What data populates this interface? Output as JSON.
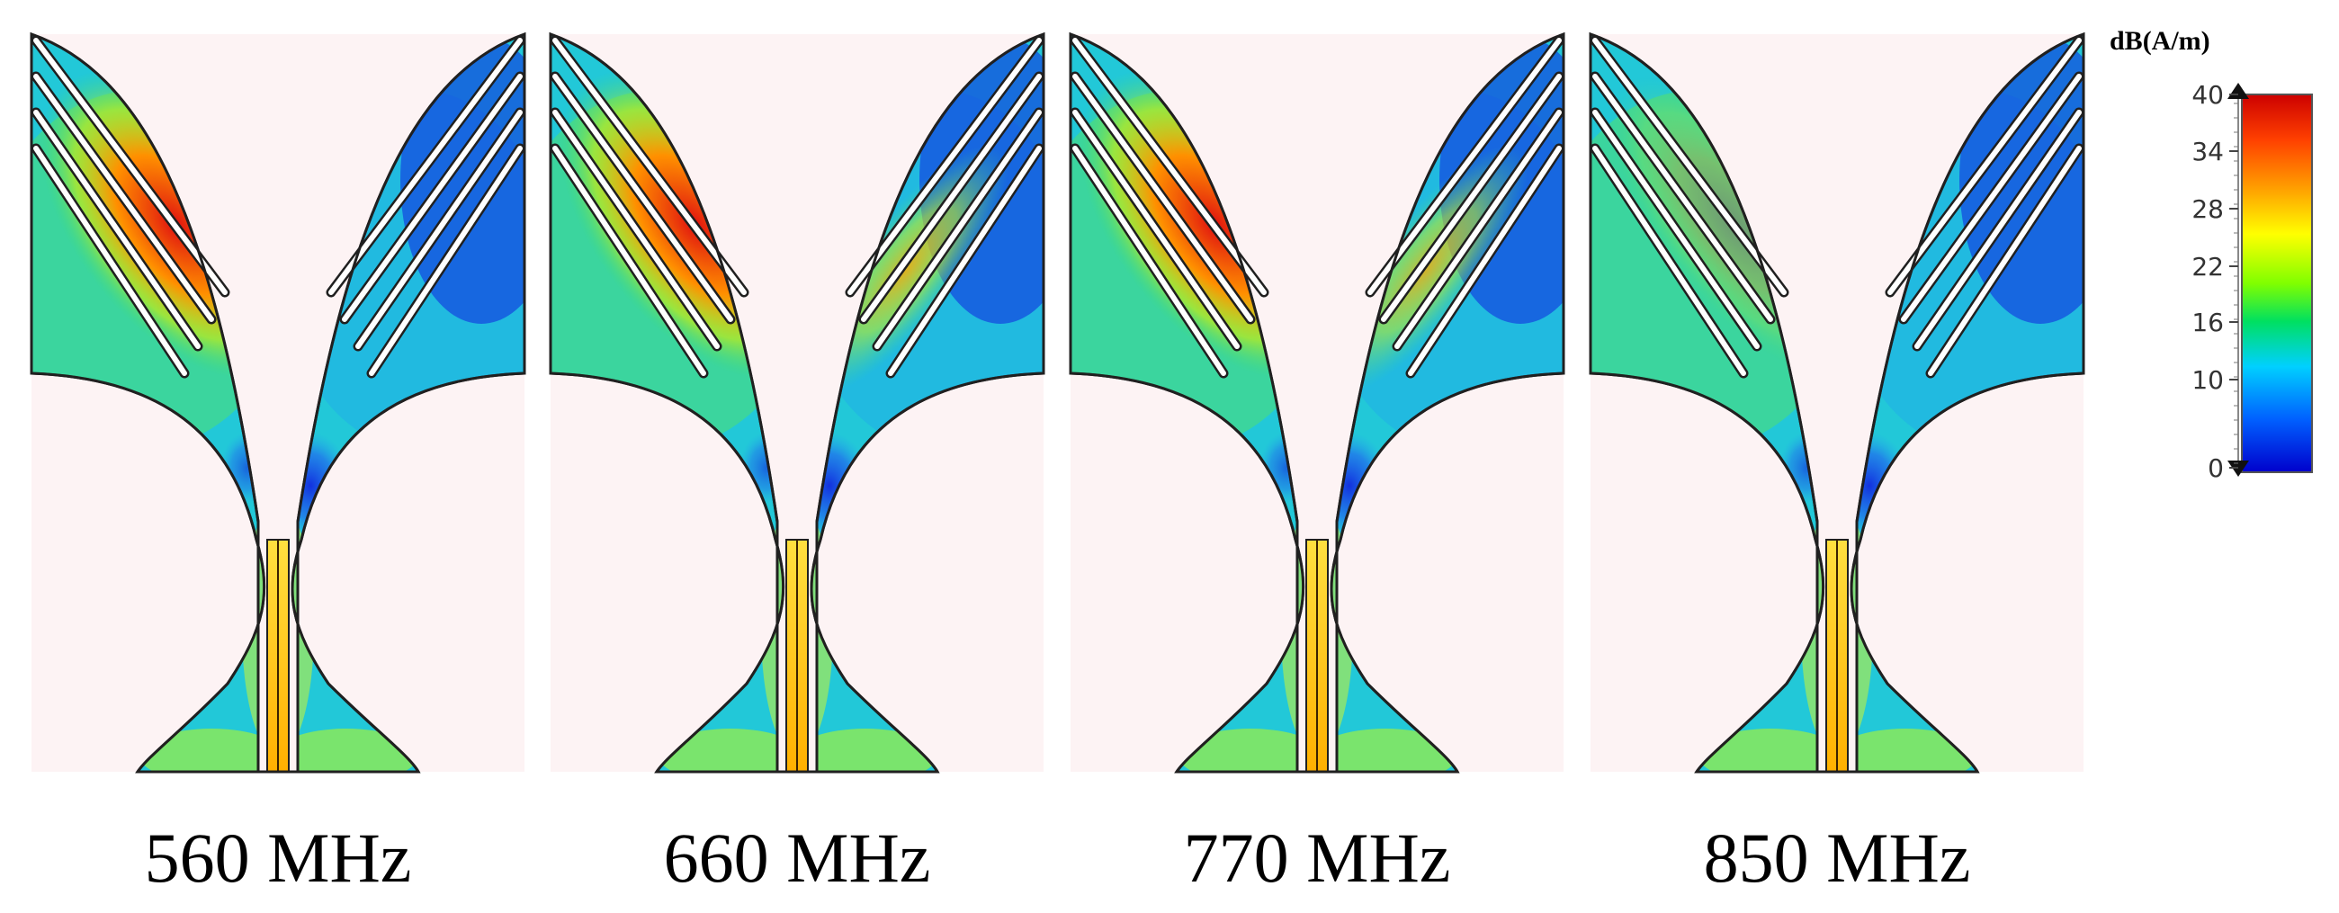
{
  "panels": [
    {
      "label": "560 MHz",
      "id": "560",
      "left_hot": 1.0,
      "right_hot": 0.0
    },
    {
      "label": "660 MHz",
      "id": "660",
      "left_hot": 1.0,
      "right_hot": 0.55
    },
    {
      "label": "770 MHz",
      "id": "770",
      "left_hot": 1.0,
      "right_hot": 0.5
    },
    {
      "label": "850 MHz",
      "id": "850",
      "left_hot": 0.3,
      "right_hot": 0.1
    }
  ],
  "colorbar": {
    "title": "dB(A/m)",
    "ticks": [
      "40",
      "34",
      "28",
      "22",
      "16",
      "10",
      "0"
    ],
    "colors": [
      "#cc0000",
      "#ff4000",
      "#ffa000",
      "#ffff00",
      "#80ff00",
      "#00e060",
      "#00d0ff",
      "#0060ff",
      "#0000cc"
    ]
  }
}
